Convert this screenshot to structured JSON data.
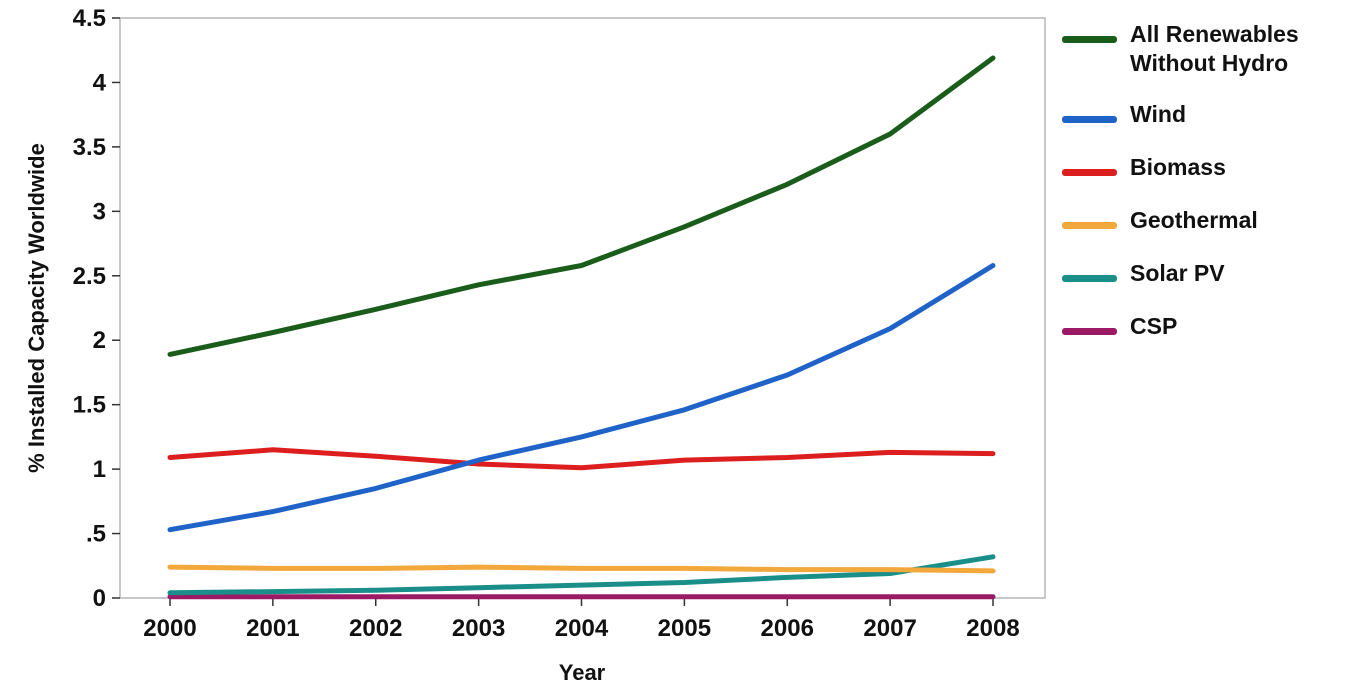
{
  "chart_data": {
    "type": "line",
    "title": "",
    "xlabel": "Year",
    "ylabel": "% Installed Capacity Worldwide",
    "x": [
      2000,
      2001,
      2002,
      2003,
      2004,
      2005,
      2006,
      2007,
      2008
    ],
    "x_tick_labels": [
      "2000",
      "2001",
      "2002",
      "2003",
      "2004",
      "2005",
      "2006",
      "2007",
      "2008"
    ],
    "ylim": [
      0,
      4.5
    ],
    "y_ticks": [
      0,
      0.5,
      1,
      1.5,
      2,
      2.5,
      3,
      3.5,
      4,
      4.5
    ],
    "y_tick_labels": [
      "0",
      ".5",
      "1",
      "1.5",
      "2",
      "2.5",
      "3",
      "3.5",
      "4",
      "4.5"
    ],
    "grid": false,
    "legend_position": "right",
    "series": [
      {
        "name": "All Renewables\nWithout Hydro",
        "color": "#1a5c1a",
        "values": [
          1.89,
          2.06,
          2.24,
          2.43,
          2.58,
          2.88,
          3.21,
          3.6,
          4.19
        ]
      },
      {
        "name": "Wind",
        "color": "#1f63c9",
        "values": [
          0.53,
          0.67,
          0.85,
          1.07,
          1.25,
          1.46,
          1.73,
          2.09,
          2.58
        ]
      },
      {
        "name": "Biomass",
        "color": "#dc1e1e",
        "values": [
          1.09,
          1.15,
          1.1,
          1.04,
          1.01,
          1.07,
          1.09,
          1.13,
          1.12
        ]
      },
      {
        "name": "Geothermal",
        "color": "#f2a83b",
        "values": [
          0.24,
          0.23,
          0.23,
          0.24,
          0.23,
          0.23,
          0.22,
          0.22,
          0.21
        ]
      },
      {
        "name": "Solar PV",
        "color": "#1a8f8a",
        "values": [
          0.04,
          0.05,
          0.06,
          0.08,
          0.1,
          0.12,
          0.16,
          0.19,
          0.32
        ]
      },
      {
        "name": "CSP",
        "color": "#9b1a66",
        "values": [
          0.01,
          0.01,
          0.01,
          0.01,
          0.01,
          0.01,
          0.01,
          0.01,
          0.01
        ]
      }
    ]
  }
}
